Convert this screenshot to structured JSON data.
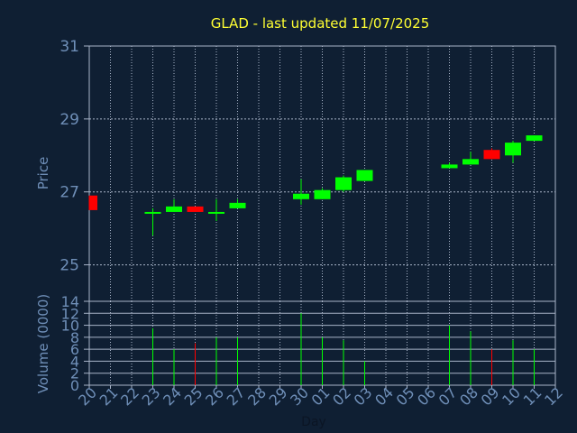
{
  "chart_data": {
    "type": "candlestick",
    "title": "GLAD - last updated 11/07/2025",
    "x_label": "Day",
    "x_ticks": [
      "20",
      "21",
      "22",
      "23",
      "24",
      "25",
      "26",
      "27",
      "28",
      "29",
      "30",
      "01",
      "02",
      "03",
      "04",
      "05",
      "06",
      "07",
      "08",
      "09",
      "10",
      "11",
      "12"
    ],
    "colors": {
      "background": "#0f1f33",
      "grid": "#a8b4c8",
      "up": "#00ff00",
      "down": "#ff0000",
      "title": "#ffff33",
      "tick_text": "#6f8fb8"
    },
    "price_panel": {
      "ylabel": "Price",
      "ylim": [
        24,
        31
      ],
      "yticks": [
        25,
        27,
        29,
        31
      ],
      "candles": [
        {
          "day": "20",
          "open": 26.9,
          "high": 26.9,
          "low": 26.5,
          "close": 26.5
        },
        {
          "day": "23",
          "open": 26.4,
          "high": 26.55,
          "low": 25.8,
          "close": 26.45
        },
        {
          "day": "24",
          "open": 26.45,
          "high": 26.8,
          "low": 26.45,
          "close": 26.6
        },
        {
          "day": "25",
          "open": 26.6,
          "high": 26.6,
          "low": 26.45,
          "close": 26.45
        },
        {
          "day": "26",
          "open": 26.4,
          "high": 26.8,
          "low": 26.2,
          "close": 26.45
        },
        {
          "day": "27",
          "open": 26.55,
          "high": 26.8,
          "low": 26.55,
          "close": 26.7
        },
        {
          "day": "30",
          "open": 26.8,
          "high": 27.35,
          "low": 26.65,
          "close": 26.95
        },
        {
          "day": "01",
          "open": 26.8,
          "high": 27.1,
          "low": 26.8,
          "close": 27.05
        },
        {
          "day": "02",
          "open": 27.05,
          "high": 27.45,
          "low": 27.0,
          "close": 27.4
        },
        {
          "day": "03",
          "open": 27.3,
          "high": 27.6,
          "low": 27.3,
          "close": 27.6
        },
        {
          "day": "07",
          "open": 27.65,
          "high": 27.8,
          "low": 27.65,
          "close": 27.75
        },
        {
          "day": "08",
          "open": 27.75,
          "high": 28.1,
          "low": 27.75,
          "close": 27.9
        },
        {
          "day": "09",
          "open": 28.15,
          "high": 28.2,
          "low": 27.9,
          "close": 27.9
        },
        {
          "day": "10",
          "open": 28.0,
          "high": 28.4,
          "low": 27.8,
          "close": 28.35
        },
        {
          "day": "11",
          "open": 28.4,
          "high": 28.55,
          "low": 28.4,
          "close": 28.55
        }
      ]
    },
    "volume_panel": {
      "ylabel": "Volume (0000)",
      "ylim": [
        0,
        14
      ],
      "yticks": [
        0,
        2,
        4,
        6,
        8,
        10,
        12,
        14
      ],
      "bars": [
        {
          "day": "23",
          "value": 9.5,
          "direction": "up"
        },
        {
          "day": "24",
          "value": 6.0,
          "direction": "up"
        },
        {
          "day": "25",
          "value": 7.0,
          "direction": "down"
        },
        {
          "day": "26",
          "value": 8.0,
          "direction": "up"
        },
        {
          "day": "27",
          "value": 8.0,
          "direction": "up"
        },
        {
          "day": "30",
          "value": 12.0,
          "direction": "up"
        },
        {
          "day": "01",
          "value": 8.0,
          "direction": "up"
        },
        {
          "day": "02",
          "value": 7.5,
          "direction": "up"
        },
        {
          "day": "03",
          "value": 4.0,
          "direction": "up"
        },
        {
          "day": "07",
          "value": 10.0,
          "direction": "up"
        },
        {
          "day": "08",
          "value": 9.0,
          "direction": "up"
        },
        {
          "day": "09",
          "value": 6.0,
          "direction": "down"
        },
        {
          "day": "10",
          "value": 7.5,
          "direction": "up"
        },
        {
          "day": "11",
          "value": 6.0,
          "direction": "up"
        }
      ]
    }
  }
}
